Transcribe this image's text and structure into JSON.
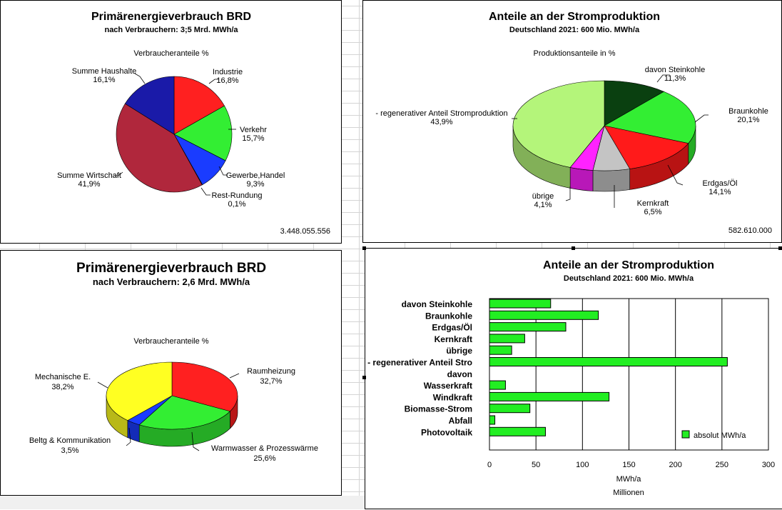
{
  "chart_data": [
    {
      "type": "pie",
      "title": "Primärenergieverbrauch BRD",
      "subtitle": "nach Verbrauchern: 3;5  Mrd. MWh/a",
      "legend_title": "Verbraucheranteile %",
      "total": "3.448.055.556",
      "slices": [
        {
          "name": "Industrie",
          "pct_label": "16,8%",
          "value": 16.8,
          "color": "#ff2020"
        },
        {
          "name": "Verkehr",
          "pct_label": "15,7%",
          "value": 15.7,
          "color": "#33ee33"
        },
        {
          "name": "Gewerbe,Handel",
          "pct_label": "9,3%",
          "value": 9.3,
          "color": "#1a3cff"
        },
        {
          "name": "Rest-Rundung",
          "pct_label": "0,1%",
          "value": 0.1,
          "color": "#00e0e0"
        },
        {
          "name": "Summe Wirtschaft",
          "pct_label": "41,9%",
          "value": 41.9,
          "color": "#b0273c"
        },
        {
          "name": "Summe Haushalte",
          "pct_label": "16,1%",
          "value": 16.1,
          "color": "#1a1aa8"
        }
      ]
    },
    {
      "type": "pie",
      "title": "Anteile an der Stromproduktion",
      "subtitle": "Deutschland 2021: 600 Mio. MWh/a",
      "legend_title": "Produktionsanteile in %",
      "total": "582.610.000",
      "slices": [
        {
          "name": "davon Steinkohle",
          "pct_label": "11,3%",
          "value": 11.3,
          "color": "#0a4010"
        },
        {
          "name": "Braunkohle",
          "pct_label": "20,1%",
          "value": 20.1,
          "color": "#33ee33"
        },
        {
          "name": "Erdgas/Öl",
          "pct_label": "14,1%",
          "value": 14.1,
          "color": "#ff1a1a"
        },
        {
          "name": "Kernkraft",
          "pct_label": "6,5%",
          "value": 6.5,
          "color": "#c4c4c4"
        },
        {
          "name": "übrige",
          "pct_label": "4,1%",
          "value": 4.1,
          "color": "#ff22ff"
        },
        {
          "name": "- regenerativer Anteil Stromproduktion",
          "pct_label": "43,9%",
          "value": 43.9,
          "color": "#b4f57a"
        }
      ]
    },
    {
      "type": "pie",
      "title": "Primärenergieverbrauch BRD",
      "subtitle": "nach Verbrauchern: 2,6 Mrd. MWh/a",
      "legend_title": "Verbraucheranteile %",
      "slices": [
        {
          "name": "Raumheizung",
          "pct_label": "32,7%",
          "value": 32.7,
          "color": "#ff2020"
        },
        {
          "name": "Warmwasser & Prozesswärme",
          "pct_label": "25,6%",
          "value": 25.6,
          "color": "#33ee33"
        },
        {
          "name": "Beltg & Kommunikation",
          "pct_label": "3,5%",
          "value": 3.5,
          "color": "#1a3cff"
        },
        {
          "name": "Mechanische E.",
          "pct_label": "38,2%",
          "value": 38.2,
          "color": "#ffff22"
        }
      ]
    },
    {
      "type": "bar",
      "orientation": "horizontal",
      "title": "Anteile an der Stromproduktion",
      "subtitle": "Deutschland 2021: 600 Mio. MWh/a",
      "categories": [
        "davon Steinkohle",
        "Braunkohle",
        "Erdgas/Öl",
        "Kernkraft",
        "übrige",
        "- regenerativer Anteil Stro",
        "davon",
        "Wasserkraft",
        "Windkraft",
        "Biomasse-Strom",
        "Abfall",
        "Photovoltaik"
      ],
      "series": [
        {
          "name": "absolut  MWh/a",
          "color": "#22ee22",
          "values": [
            65.8,
            117.1,
            82.1,
            37.9,
            23.9,
            255.8,
            0,
            17.2,
            128.6,
            43.5,
            5.8,
            60.2
          ]
        }
      ],
      "xlim": [
        0,
        300
      ],
      "xticks": [
        "0",
        "50",
        "100",
        "150",
        "200",
        "250",
        "300"
      ],
      "xlabel": "MWh/a",
      "xlabel2": "Millionen",
      "legend": "bottom-right"
    }
  ]
}
